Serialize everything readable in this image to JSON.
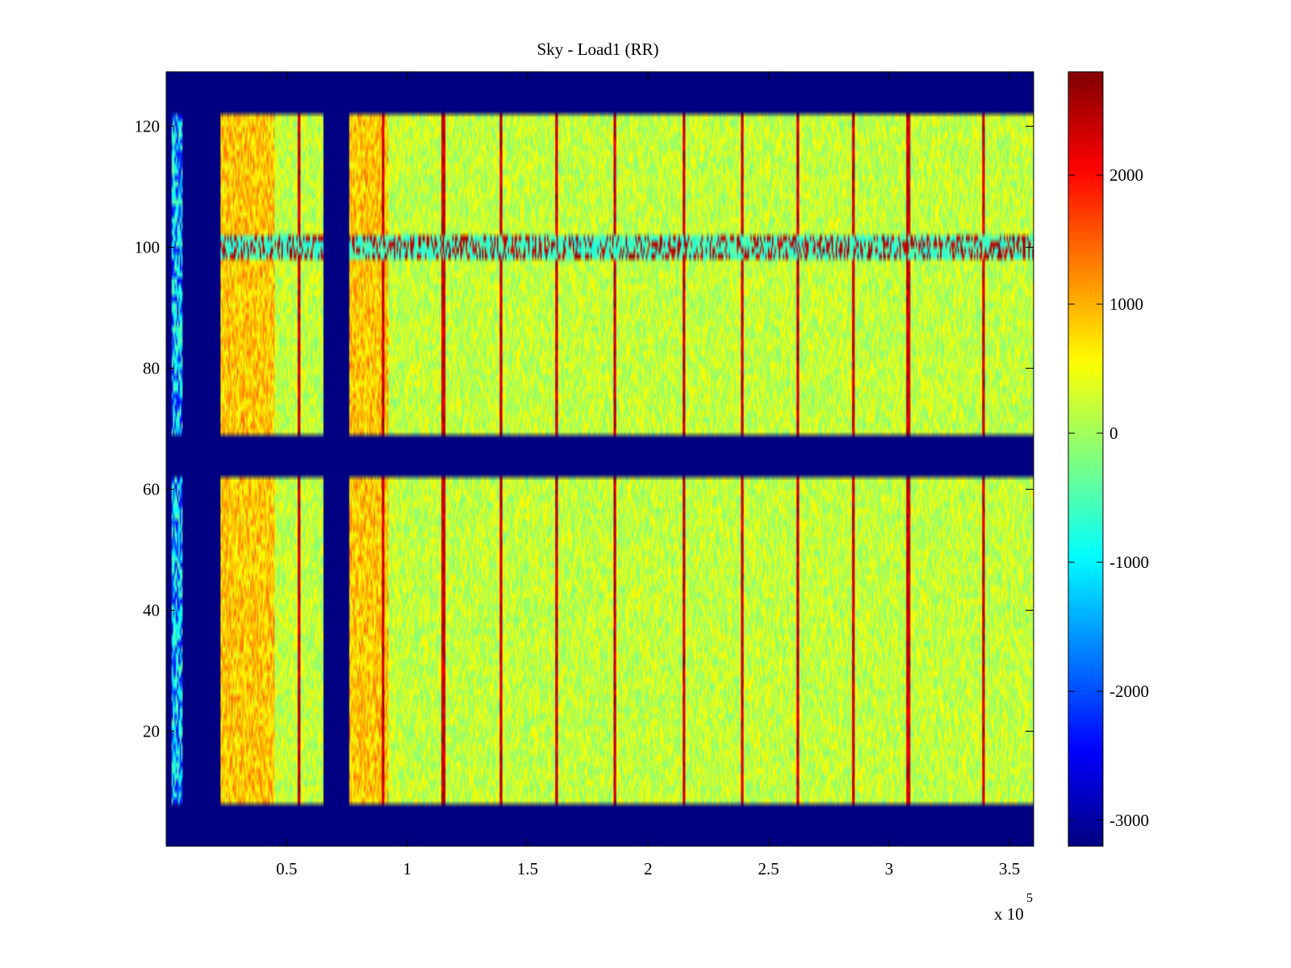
{
  "chart_data": {
    "type": "heatmap",
    "title": "Sky - Load1 (RR)",
    "xlabel": "",
    "ylabel": "",
    "x_exponent_label": "x 10",
    "x_exponent": "5",
    "xlim": [
      0,
      3.6
    ],
    "ylim": [
      1,
      129
    ],
    "x_ticks": [
      0.5,
      1,
      1.5,
      2,
      2.5,
      3,
      3.5
    ],
    "x_tick_labels": [
      "0.5",
      "1",
      "1.5",
      "2",
      "2.5",
      "3",
      "3.5"
    ],
    "y_ticks": [
      20,
      40,
      60,
      80,
      100,
      120
    ],
    "y_tick_labels": [
      "20",
      "40",
      "60",
      "80",
      "100",
      "120"
    ],
    "colorbar": {
      "colormap": "jet",
      "clim": [
        -3200,
        2800
      ],
      "ticks": [
        -3000,
        -2000,
        -1000,
        0,
        1000,
        2000
      ],
      "tick_labels": [
        "-3000",
        "-2000",
        "-1000",
        "0",
        "1000",
        "2000"
      ]
    },
    "masked_row_bands": [
      [
        1,
        8
      ],
      [
        62,
        69
      ],
      [
        122,
        129
      ]
    ],
    "active_row_bands": [
      [
        8,
        62
      ],
      [
        69,
        122
      ]
    ],
    "masked_col_bands": [
      [
        0.07,
        0.225
      ],
      [
        0.65,
        0.76
      ]
    ],
    "bright_column_lines_x": [
      0.55,
      0.9,
      1.15,
      1.39,
      1.62,
      1.86,
      2.15,
      2.39,
      2.62,
      2.85,
      3.08,
      3.39
    ],
    "rfi_row_band": [
      98,
      102
    ],
    "background_mean": 200,
    "edge_warm_mean": 900
  }
}
